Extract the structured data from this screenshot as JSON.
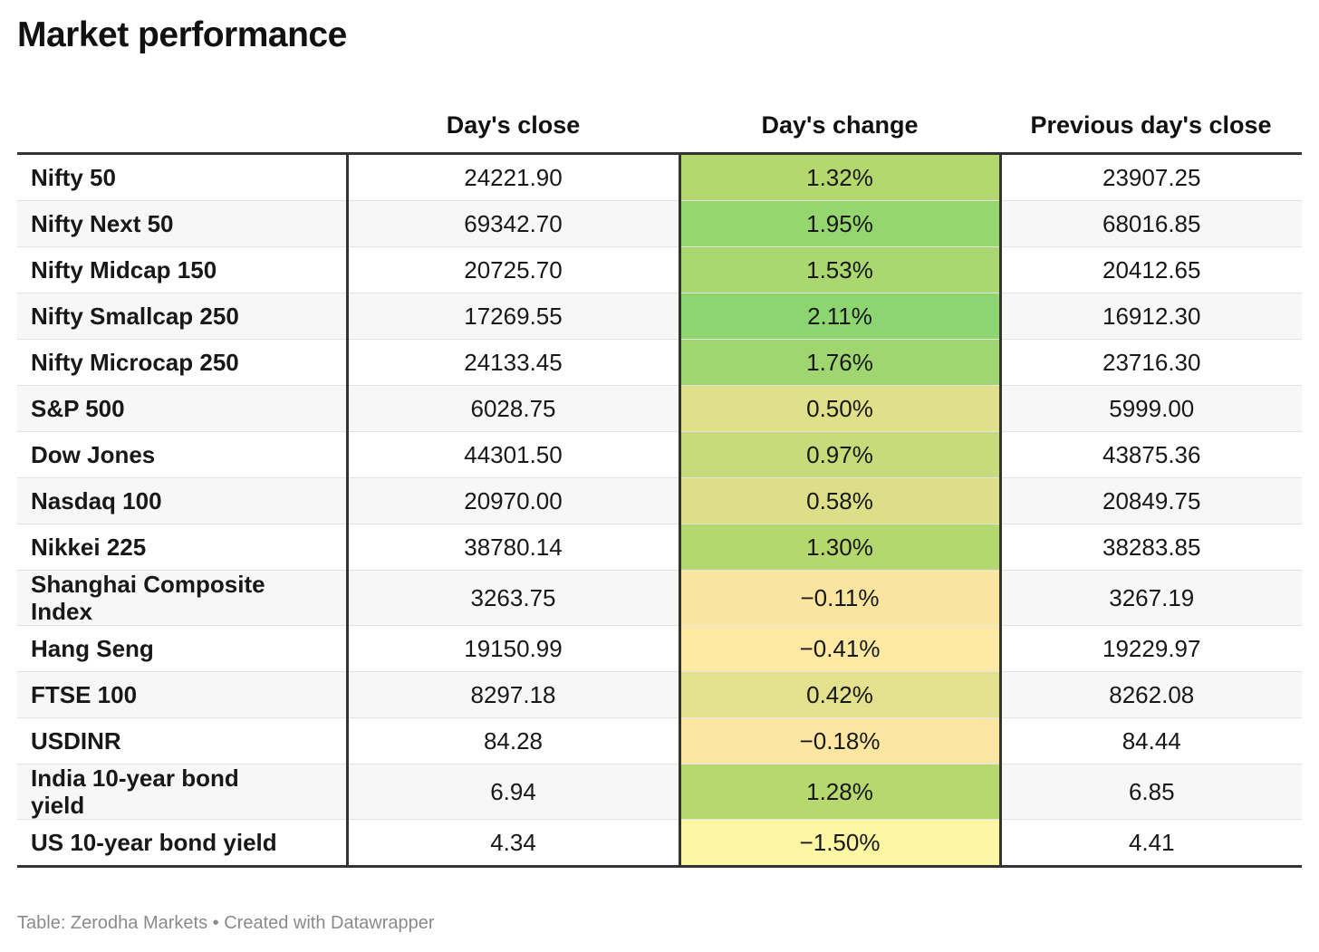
{
  "chart_data": {
    "type": "table",
    "title": "Market performance",
    "columns": [
      "",
      "Day's close",
      "Day's change",
      "Previous day's close"
    ],
    "rows": [
      {
        "name": "Nifty 50",
        "close": "24221.90",
        "change": "1.32%",
        "change_value": 1.32,
        "prev": "23907.25"
      },
      {
        "name": "Nifty Next 50",
        "close": "69342.70",
        "change": "1.95%",
        "change_value": 1.95,
        "prev": "68016.85"
      },
      {
        "name": "Nifty Midcap 150",
        "close": "20725.70",
        "change": "1.53%",
        "change_value": 1.53,
        "prev": "20412.65"
      },
      {
        "name": "Nifty Smallcap 250",
        "close": "17269.55",
        "change": "2.11%",
        "change_value": 2.11,
        "prev": "16912.30"
      },
      {
        "name": "Nifty Microcap 250",
        "close": "24133.45",
        "change": "1.76%",
        "change_value": 1.76,
        "prev": "23716.30"
      },
      {
        "name": "S&P 500",
        "close": "6028.75",
        "change": "0.50%",
        "change_value": 0.5,
        "prev": "5999.00"
      },
      {
        "name": "Dow Jones",
        "close": "44301.50",
        "change": "0.97%",
        "change_value": 0.97,
        "prev": "43875.36"
      },
      {
        "name": "Nasdaq 100",
        "close": "20970.00",
        "change": "0.58%",
        "change_value": 0.58,
        "prev": "20849.75"
      },
      {
        "name": "Nikkei 225",
        "close": "38780.14",
        "change": "1.30%",
        "change_value": 1.3,
        "prev": "38283.85"
      },
      {
        "name": "Shanghai Composite Index",
        "close": "3263.75",
        "change": "−0.11%",
        "change_value": -0.11,
        "prev": "3267.19"
      },
      {
        "name": "Hang Seng",
        "close": "19150.99",
        "change": "−0.41%",
        "change_value": -0.41,
        "prev": "19229.97"
      },
      {
        "name": "FTSE 100",
        "close": "8297.18",
        "change": "0.42%",
        "change_value": 0.42,
        "prev": "8262.08"
      },
      {
        "name": "USDINR",
        "close": "84.28",
        "change": "−0.18%",
        "change_value": -0.18,
        "prev": "84.44"
      },
      {
        "name": "India 10-year bond yield",
        "close": "6.94",
        "change": "1.28%",
        "change_value": 1.28,
        "prev": "6.85"
      },
      {
        "name": "US 10-year bond yield",
        "close": "4.34",
        "change": "−1.50%",
        "change_value": -1.5,
        "prev": "4.41"
      }
    ],
    "color_scale": {
      "min": -1.5,
      "max": 2.11,
      "stops": [
        "#fdf6a3",
        "#fde6a2",
        "#e0e08a",
        "#b5d86e",
        "#8ed572"
      ]
    }
  },
  "footer": "Table: Zerodha Markets • Created with Datawrapper"
}
